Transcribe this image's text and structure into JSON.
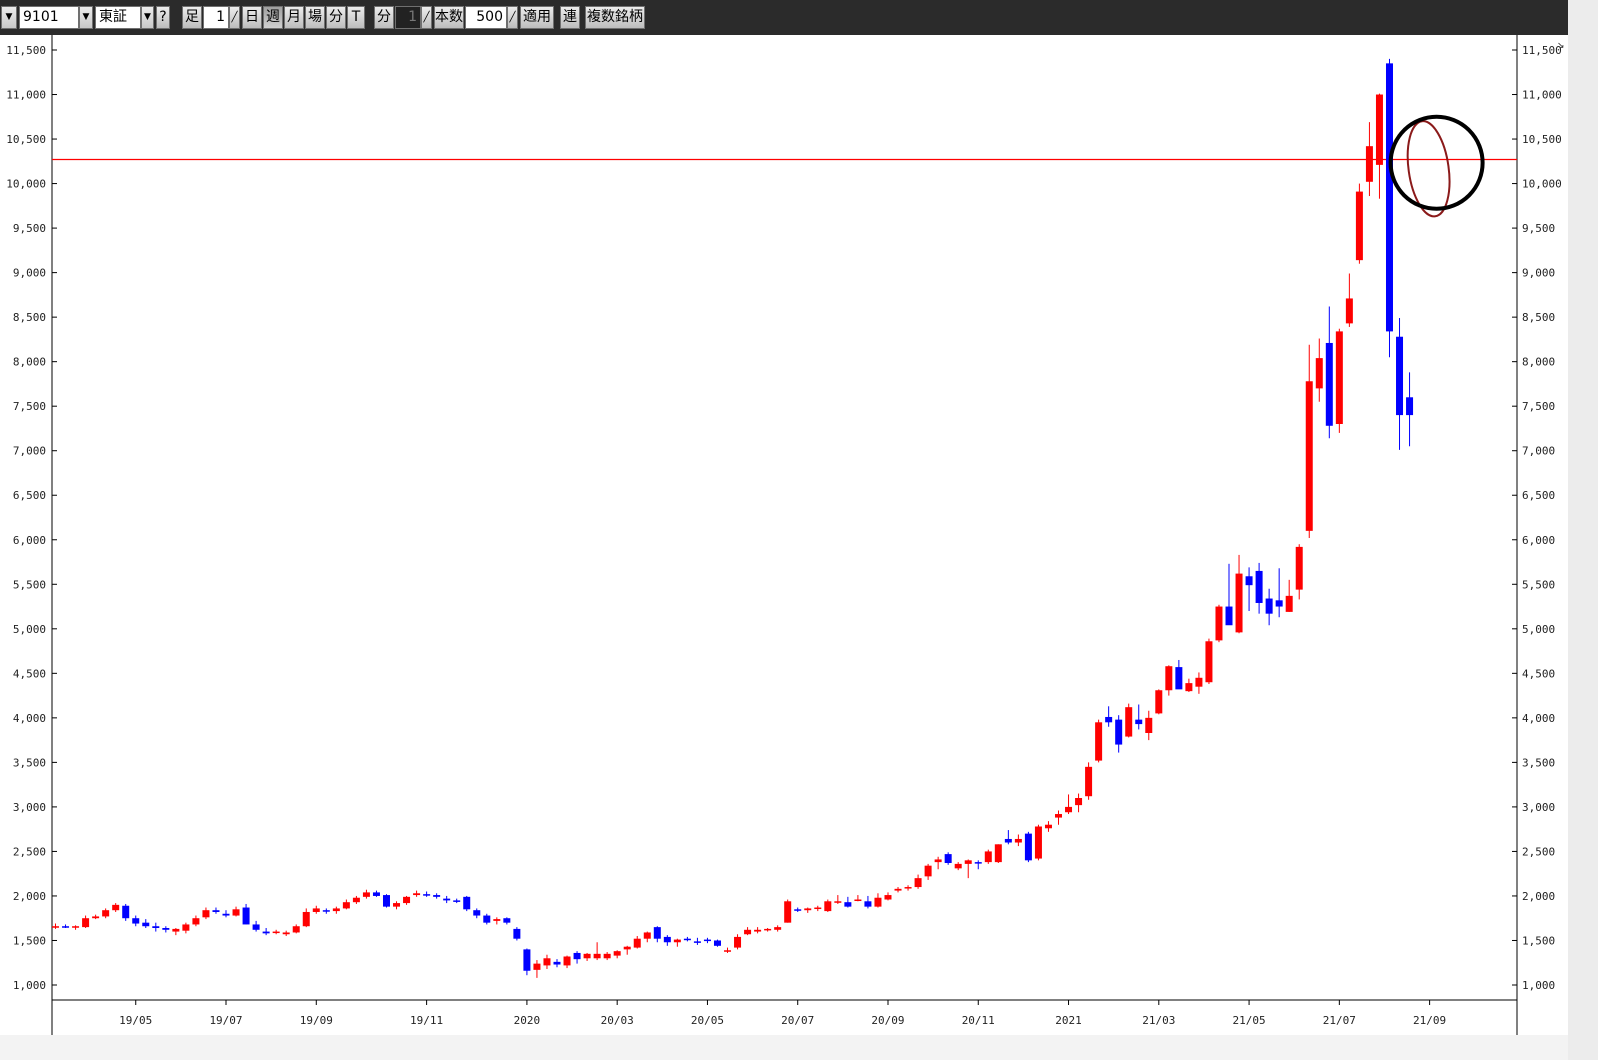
{
  "toolbar": {
    "menu_arrow": "▼",
    "symbol_code": "9101",
    "symbol_arrow": "▼",
    "market": "東証",
    "market_arrow": "▼",
    "help": "?",
    "ashi_label": "足",
    "interval_value": "1",
    "period_day": "日",
    "period_week": "週",
    "period_month": "月",
    "period_session": "場",
    "period_minute": "分",
    "period_tick": "T",
    "min_label": "分",
    "min_value": "1",
    "bars_label": "本数",
    "bars_value": "500",
    "apply_button": "適用",
    "link_button": "連",
    "multi_button": "複数銘柄",
    "active_period": "週"
  },
  "colors": {
    "up": "#ff0000",
    "down": "#0000ff",
    "hline": "#ff0000",
    "circle": "#000000",
    "ellipse": "#8b1a1a"
  },
  "chart_data": {
    "type": "candlestick",
    "title": "",
    "xlabel": "",
    "ylabel": "",
    "ylim": [
      850,
      11650
    ],
    "y_ticks": [
      "1,000",
      "1,500",
      "2,000",
      "2,500",
      "3,000",
      "3,500",
      "4,000",
      "4,500",
      "5,000",
      "5,500",
      "6,000",
      "6,500",
      "7,000",
      "7,500",
      "8,000",
      "8,500",
      "9,000",
      "9,500",
      "10,000",
      "10,500",
      "11,000",
      "11,500"
    ],
    "x_ticks": [
      {
        "label": "19/05",
        "week": 8
      },
      {
        "label": "19/07",
        "week": 17
      },
      {
        "label": "19/09",
        "week": 26
      },
      {
        "label": "19/11",
        "week": 37
      },
      {
        "label": "2020",
        "week": 47
      },
      {
        "label": "20/03",
        "week": 56
      },
      {
        "label": "20/05",
        "week": 65
      },
      {
        "label": "20/07",
        "week": 74
      },
      {
        "label": "20/09",
        "week": 83
      },
      {
        "label": "20/11",
        "week": 92
      },
      {
        "label": "2021",
        "week": 101
      },
      {
        "label": "21/03",
        "week": 110
      },
      {
        "label": "21/05",
        "week": 119
      },
      {
        "label": "21/07",
        "week": 128
      },
      {
        "label": "21/09",
        "week": 137
      }
    ],
    "horizontal_line": 10270,
    "annotation": {
      "type": "circle",
      "week": 137,
      "price": 10200
    },
    "candles": [
      [
        1650,
        1690,
        1630,
        1660
      ],
      [
        1660,
        1680,
        1640,
        1650
      ],
      [
        1650,
        1670,
        1620,
        1660
      ],
      [
        1650,
        1780,
        1640,
        1750
      ],
      [
        1750,
        1790,
        1740,
        1770
      ],
      [
        1770,
        1860,
        1750,
        1840
      ],
      [
        1840,
        1920,
        1820,
        1900
      ],
      [
        1890,
        1910,
        1720,
        1750
      ],
      [
        1750,
        1780,
        1660,
        1690
      ],
      [
        1700,
        1740,
        1640,
        1660
      ],
      [
        1660,
        1700,
        1600,
        1640
      ],
      [
        1640,
        1660,
        1590,
        1620
      ],
      [
        1600,
        1640,
        1560,
        1630
      ],
      [
        1610,
        1700,
        1580,
        1680
      ],
      [
        1680,
        1780,
        1660,
        1750
      ],
      [
        1760,
        1870,
        1740,
        1840
      ],
      [
        1840,
        1870,
        1800,
        1820
      ],
      [
        1800,
        1840,
        1760,
        1780
      ],
      [
        1780,
        1880,
        1770,
        1850
      ],
      [
        1870,
        1910,
        1680,
        1680
      ],
      [
        1680,
        1720,
        1600,
        1620
      ],
      [
        1600,
        1640,
        1560,
        1580
      ],
      [
        1590,
        1620,
        1570,
        1600
      ],
      [
        1570,
        1610,
        1550,
        1590
      ],
      [
        1590,
        1680,
        1580,
        1660
      ],
      [
        1660,
        1860,
        1650,
        1820
      ],
      [
        1820,
        1890,
        1800,
        1860
      ],
      [
        1840,
        1860,
        1800,
        1830
      ],
      [
        1830,
        1880,
        1800,
        1860
      ],
      [
        1860,
        1960,
        1850,
        1930
      ],
      [
        1930,
        2000,
        1910,
        1980
      ],
      [
        1990,
        2070,
        1970,
        2040
      ],
      [
        2040,
        2060,
        1990,
        2000
      ],
      [
        2010,
        2020,
        1870,
        1880
      ],
      [
        1880,
        1940,
        1850,
        1920
      ],
      [
        1920,
        2000,
        1900,
        1990
      ],
      [
        2010,
        2060,
        1990,
        2030
      ],
      [
        2020,
        2050,
        1990,
        2010
      ],
      [
        2010,
        2030,
        1970,
        1990
      ],
      [
        1970,
        2000,
        1920,
        1950
      ],
      [
        1950,
        1970,
        1920,
        1940
      ],
      [
        1990,
        2000,
        1830,
        1850
      ],
      [
        1840,
        1860,
        1750,
        1780
      ],
      [
        1780,
        1800,
        1680,
        1700
      ],
      [
        1720,
        1760,
        1680,
        1740
      ],
      [
        1750,
        1760,
        1680,
        1700
      ],
      [
        1630,
        1650,
        1500,
        1520
      ],
      [
        1400,
        1410,
        1110,
        1160
      ],
      [
        1170,
        1280,
        1080,
        1240
      ],
      [
        1220,
        1340,
        1180,
        1300
      ],
      [
        1260,
        1290,
        1200,
        1230
      ],
      [
        1220,
        1330,
        1190,
        1320
      ],
      [
        1360,
        1380,
        1240,
        1290
      ],
      [
        1300,
        1360,
        1270,
        1350
      ],
      [
        1300,
        1480,
        1280,
        1350
      ],
      [
        1300,
        1370,
        1280,
        1350
      ],
      [
        1330,
        1390,
        1300,
        1380
      ],
      [
        1400,
        1440,
        1340,
        1430
      ],
      [
        1420,
        1550,
        1410,
        1520
      ],
      [
        1520,
        1600,
        1480,
        1590
      ],
      [
        1650,
        1660,
        1480,
        1520
      ],
      [
        1540,
        1560,
        1440,
        1480
      ],
      [
        1480,
        1520,
        1430,
        1510
      ],
      [
        1520,
        1540,
        1490,
        1510
      ],
      [
        1490,
        1530,
        1450,
        1480
      ],
      [
        1510,
        1530,
        1470,
        1500
      ],
      [
        1500,
        1510,
        1430,
        1440
      ],
      [
        1380,
        1420,
        1360,
        1390
      ],
      [
        1420,
        1570,
        1400,
        1540
      ],
      [
        1570,
        1650,
        1560,
        1620
      ],
      [
        1600,
        1650,
        1580,
        1620
      ],
      [
        1620,
        1640,
        1600,
        1630
      ],
      [
        1620,
        1670,
        1600,
        1650
      ],
      [
        1700,
        1960,
        1700,
        1940
      ],
      [
        1850,
        1870,
        1820,
        1840
      ],
      [
        1840,
        1870,
        1810,
        1860
      ],
      [
        1860,
        1890,
        1830,
        1870
      ],
      [
        1830,
        1960,
        1820,
        1940
      ],
      [
        1940,
        2010,
        1910,
        1940
      ],
      [
        1930,
        1990,
        1870,
        1880
      ],
      [
        1950,
        2010,
        1940,
        1960
      ],
      [
        1940,
        2000,
        1860,
        1880
      ],
      [
        1880,
        2030,
        1870,
        1980
      ],
      [
        1960,
        2040,
        1950,
        2010
      ],
      [
        2060,
        2100,
        2040,
        2080
      ],
      [
        2090,
        2120,
        2060,
        2100
      ],
      [
        2100,
        2240,
        2080,
        2200
      ],
      [
        2220,
        2360,
        2180,
        2340
      ],
      [
        2380,
        2440,
        2300,
        2410
      ],
      [
        2470,
        2490,
        2350,
        2370
      ],
      [
        2310,
        2380,
        2290,
        2360
      ],
      [
        2360,
        2410,
        2200,
        2400
      ],
      [
        2380,
        2400,
        2300,
        2370
      ],
      [
        2380,
        2520,
        2360,
        2500
      ],
      [
        2380,
        2580,
        2370,
        2580
      ],
      [
        2640,
        2740,
        2580,
        2600
      ],
      [
        2600,
        2690,
        2560,
        2640
      ],
      [
        2700,
        2720,
        2380,
        2400
      ],
      [
        2420,
        2800,
        2400,
        2780
      ],
      [
        2760,
        2840,
        2720,
        2800
      ],
      [
        2880,
        2960,
        2800,
        2920
      ],
      [
        2940,
        3140,
        2920,
        3000
      ],
      [
        3020,
        3150,
        2940,
        3100
      ],
      [
        3120,
        3500,
        3080,
        3450
      ],
      [
        3520,
        3980,
        3500,
        3950
      ],
      [
        4010,
        4130,
        3900,
        3950
      ],
      [
        3980,
        4030,
        3610,
        3700
      ],
      [
        3790,
        4160,
        3780,
        4120
      ],
      [
        3980,
        4150,
        3870,
        3930
      ],
      [
        3830,
        4080,
        3750,
        4000
      ],
      [
        4050,
        4320,
        4040,
        4310
      ],
      [
        4310,
        4590,
        4250,
        4580
      ],
      [
        4570,
        4650,
        4420,
        4320
      ],
      [
        4300,
        4440,
        4290,
        4390
      ],
      [
        4350,
        4510,
        4270,
        4450
      ],
      [
        4400,
        4890,
        4380,
        4860
      ],
      [
        4870,
        5270,
        4850,
        5250
      ],
      [
        5250,
        5730,
        5130,
        5040
      ],
      [
        4960,
        5830,
        4950,
        5620
      ],
      [
        5590,
        5690,
        5200,
        5490
      ],
      [
        5650,
        5740,
        5170,
        5290
      ],
      [
        5340,
        5450,
        5040,
        5170
      ],
      [
        5320,
        5680,
        5130,
        5250
      ],
      [
        5190,
        5550,
        5190,
        5370
      ],
      [
        5440,
        5950,
        5330,
        5920
      ],
      [
        6100,
        8190,
        6020,
        7780
      ],
      [
        7700,
        8260,
        7550,
        8040
      ],
      [
        8210,
        8620,
        7140,
        7280
      ],
      [
        7300,
        8370,
        7200,
        8340
      ],
      [
        8430,
        8990,
        8390,
        8710
      ],
      [
        9140,
        10000,
        9100,
        9910
      ],
      [
        10020,
        10690,
        9860,
        10420
      ],
      [
        10210,
        11010,
        9830,
        11000
      ],
      [
        11350,
        11400,
        8050,
        8340
      ],
      [
        8280,
        8490,
        7010,
        7400
      ],
      [
        7600,
        7880,
        7050,
        7400
      ]
    ]
  }
}
